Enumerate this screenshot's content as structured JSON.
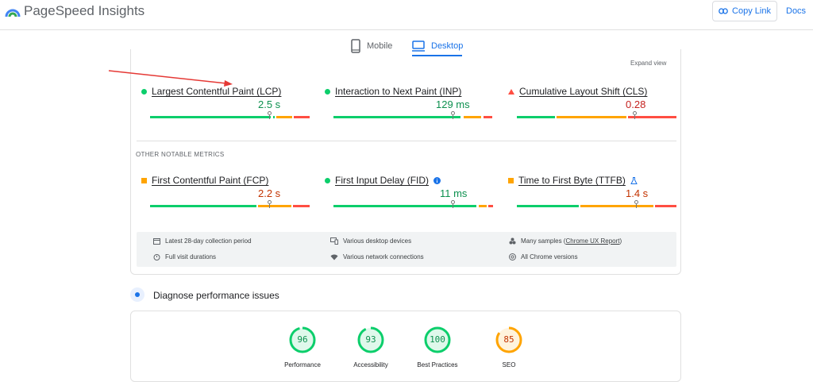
{
  "header": {
    "app_title": "PageSpeed Insights",
    "copy_link_label": "Copy Link",
    "docs_label": "Docs"
  },
  "tabs": [
    {
      "label": "Mobile",
      "icon": "phone-icon",
      "selected": false
    },
    {
      "label": "Desktop",
      "icon": "monitor-icon",
      "selected": true
    }
  ],
  "core_metrics": {
    "expand_label": "Expand view",
    "items": [
      {
        "name": "Largest Contentful Paint (LCP)",
        "value": "2.5 s",
        "status": "good",
        "value_color": "#0d904f",
        "marker_fraction": 0.75
      },
      {
        "name": "Interaction to Next Paint (INP)",
        "value": "129 ms",
        "status": "good",
        "value_color": "#0d904f",
        "marker_fraction": 0.75
      },
      {
        "name": "Cumulative Layout Shift (CLS)",
        "value": "0.28",
        "status": "poor",
        "value_color": "#c5221f",
        "marker_fraction": 0.75
      }
    ]
  },
  "other_metrics": {
    "label": "OTHER NOTABLE METRICS",
    "items": [
      {
        "name": "First Contentful Paint (FCP)",
        "value": "2.2 s",
        "status": "needs-improvement",
        "value_color": "#c33300",
        "marker_fraction": 0.75
      },
      {
        "name": "First Input Delay (FID)",
        "value": "11 ms",
        "status": "good",
        "value_color": "#0d904f",
        "marker_fraction": 0.75,
        "extra_icon": "info-icon"
      },
      {
        "name": "Time to First Byte (TTFB)",
        "value": "1.4 s",
        "status": "needs-improvement",
        "value_color": "#c33300",
        "marker_fraction": 0.75,
        "extra_icon": "experimental-flask-icon"
      }
    ]
  },
  "info": {
    "collection_period": "Latest 28-day collection period",
    "devices": "Various desktop devices",
    "samples_prefix": "Many samples (",
    "samples_link": "Chrome UX Report",
    "samples_suffix": ")",
    "durations": "Full visit durations",
    "connections": "Various network connections",
    "chrome_versions": "All Chrome versions"
  },
  "diagnose": {
    "title": "Diagnose performance issues",
    "scores": [
      {
        "label": "Performance",
        "score": "96",
        "fraction": 0.96,
        "color": "#0cce6b",
        "text_color": "#0d904f"
      },
      {
        "label": "Accessibility",
        "score": "93",
        "fraction": 0.93,
        "color": "#0cce6b",
        "text_color": "#0d904f"
      },
      {
        "label": "Best Practices",
        "score": "100",
        "fraction": 1.0,
        "color": "#0cce6b",
        "text_color": "#0d904f"
      },
      {
        "label": "SEO",
        "score": "85",
        "fraction": 0.85,
        "color": "#ffa400",
        "text_color": "#c33300"
      }
    ]
  },
  "colors": {
    "accent": "#1a73e8",
    "good": "#0cce6b",
    "average": "#ffa400",
    "poor": "#ff4e42",
    "annotation_arrow": "#e53935"
  }
}
